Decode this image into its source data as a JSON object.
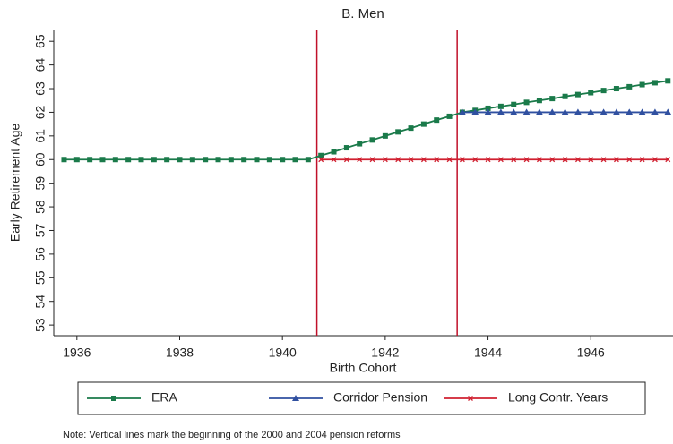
{
  "chart_data": {
    "type": "line",
    "title": "B. Men",
    "x_label": "Birth Cohort",
    "y_label": "Early Retirement Age",
    "note": "Note: Vertical lines mark the beginning of the 2000 and 2004 pension reforms",
    "x": [
      1935.75,
      1936,
      1936.25,
      1936.5,
      1936.75,
      1937,
      1937.25,
      1937.5,
      1937.75,
      1938,
      1938.25,
      1938.5,
      1938.75,
      1939,
      1939.25,
      1939.5,
      1939.75,
      1940,
      1940.25,
      1940.5,
      1940.75,
      1941,
      1941.25,
      1941.5,
      1941.75,
      1942,
      1942.25,
      1942.5,
      1942.75,
      1943,
      1943.25,
      1943.5,
      1943.75,
      1944,
      1944.25,
      1944.5,
      1944.75,
      1945,
      1945.25,
      1945.5,
      1945.75,
      1946,
      1946.25,
      1946.5,
      1946.75,
      1947,
      1947.25,
      1947.5
    ],
    "series": [
      {
        "name": "ERA",
        "color": "#1a7a4a",
        "marker": "square",
        "values": [
          60,
          60,
          60,
          60,
          60,
          60,
          60,
          60,
          60,
          60,
          60,
          60,
          60,
          60,
          60,
          60,
          60,
          60,
          60,
          60,
          60.17,
          60.33,
          60.5,
          60.67,
          60.83,
          61,
          61.17,
          61.33,
          61.5,
          61.67,
          61.83,
          62,
          62.08,
          62.17,
          62.25,
          62.33,
          62.42,
          62.5,
          62.58,
          62.67,
          62.75,
          62.83,
          62.92,
          63,
          63.08,
          63.17,
          63.25,
          63.33
        ]
      },
      {
        "name": "Corridor Pension",
        "color": "#3050a0",
        "marker": "triangle",
        "values": [
          null,
          null,
          null,
          null,
          null,
          null,
          null,
          null,
          null,
          null,
          null,
          null,
          null,
          null,
          null,
          null,
          null,
          null,
          null,
          null,
          null,
          null,
          null,
          null,
          null,
          null,
          null,
          null,
          null,
          null,
          null,
          62,
          62,
          62,
          62,
          62,
          62,
          62,
          62,
          62,
          62,
          62,
          62,
          62,
          62,
          62,
          62,
          62
        ]
      },
      {
        "name": "Long Contr. Years",
        "color": "#d02030",
        "marker": "cross",
        "values": [
          null,
          null,
          null,
          null,
          null,
          null,
          null,
          null,
          null,
          null,
          null,
          null,
          null,
          null,
          null,
          null,
          null,
          null,
          null,
          null,
          60,
          60,
          60,
          60,
          60,
          60,
          60,
          60,
          60,
          60,
          60,
          60,
          60,
          60,
          60,
          60,
          60,
          60,
          60,
          60,
          60,
          60,
          60,
          60,
          60,
          60,
          60,
          60
        ]
      }
    ],
    "vlines": [
      1940.67,
      1943.4
    ],
    "vline_color": "#c0102a",
    "xlim": [
      1935.55,
      1947.6
    ],
    "xticks": [
      1936,
      1938,
      1940,
      1942,
      1944,
      1946
    ],
    "ylim": [
      52.55,
      65.5
    ],
    "yticks": [
      53,
      54,
      55,
      56,
      57,
      58,
      59,
      60,
      61,
      62,
      63,
      64,
      65
    ],
    "legend": "bottom"
  }
}
